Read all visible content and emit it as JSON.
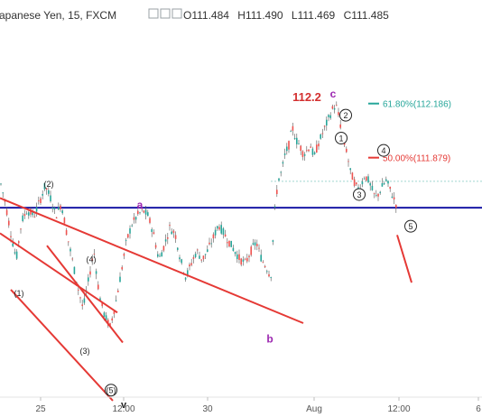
{
  "header": {
    "symbol": "apanese Yen, 15, FXCM",
    "ohlc": [
      {
        "key": "O",
        "value": "111.484"
      },
      {
        "key": "H",
        "value": "111.490"
      },
      {
        "key": "L",
        "value": "111.469"
      },
      {
        "key": "C",
        "value": "111.485"
      }
    ]
  },
  "chart_data": {
    "type": "candlestick",
    "y_range": [
      110.52,
      112.62
    ],
    "x_range": [
      0,
      534
    ],
    "x_ticks": [
      {
        "label": "25",
        "x": 45
      },
      {
        "label": "12:00",
        "x": 137
      },
      {
        "label": "30",
        "x": 230
      },
      {
        "label": "Aug",
        "x": 348
      },
      {
        "label": "12:00",
        "x": 442
      },
      {
        "label": "6",
        "x": 530
      }
    ],
    "price_path": [
      [
        0,
        111.75
      ],
      [
        6,
        111.62
      ],
      [
        12,
        111.45
      ],
      [
        18,
        111.3
      ],
      [
        24,
        111.52
      ],
      [
        30,
        111.58
      ],
      [
        38,
        111.55
      ],
      [
        44,
        111.63
      ],
      [
        50,
        111.72
      ],
      [
        56,
        111.65
      ],
      [
        62,
        111.55
      ],
      [
        68,
        111.62
      ],
      [
        74,
        111.45
      ],
      [
        80,
        111.3
      ],
      [
        86,
        111.15
      ],
      [
        92,
        111.02
      ],
      [
        98,
        111.18
      ],
      [
        104,
        111.35
      ],
      [
        110,
        111.1
      ],
      [
        116,
        110.98
      ],
      [
        122,
        110.92
      ],
      [
        128,
        111.05
      ],
      [
        134,
        111.22
      ],
      [
        140,
        111.4
      ],
      [
        146,
        111.5
      ],
      [
        152,
        111.55
      ],
      [
        158,
        111.58
      ],
      [
        164,
        111.55
      ],
      [
        170,
        111.45
      ],
      [
        176,
        111.3
      ],
      [
        182,
        111.38
      ],
      [
        188,
        111.48
      ],
      [
        194,
        111.45
      ],
      [
        200,
        111.3
      ],
      [
        206,
        111.2
      ],
      [
        212,
        111.28
      ],
      [
        218,
        111.35
      ],
      [
        224,
        111.3
      ],
      [
        230,
        111.35
      ],
      [
        236,
        111.42
      ],
      [
        242,
        111.5
      ],
      [
        248,
        111.45
      ],
      [
        254,
        111.4
      ],
      [
        260,
        111.35
      ],
      [
        266,
        111.3
      ],
      [
        272,
        111.28
      ],
      [
        278,
        111.35
      ],
      [
        284,
        111.4
      ],
      [
        290,
        111.3
      ],
      [
        296,
        111.25
      ],
      [
        300,
        111.2
      ],
      [
        304,
        111.55
      ],
      [
        308,
        111.75
      ],
      [
        312,
        111.8
      ],
      [
        316,
        111.9
      ],
      [
        320,
        111.95
      ],
      [
        324,
        112.05
      ],
      [
        328,
        111.98
      ],
      [
        332,
        111.95
      ],
      [
        336,
        111.9
      ],
      [
        340,
        111.92
      ],
      [
        344,
        111.95
      ],
      [
        348,
        111.88
      ],
      [
        352,
        111.95
      ],
      [
        356,
        112.0
      ],
      [
        360,
        112.05
      ],
      [
        364,
        112.1
      ],
      [
        368,
        112.15
      ],
      [
        372,
        112.18
      ],
      [
        376,
        112.1
      ],
      [
        380,
        111.98
      ],
      [
        384,
        111.92
      ],
      [
        388,
        111.8
      ],
      [
        392,
        111.75
      ],
      [
        396,
        111.7
      ],
      [
        400,
        111.72
      ],
      [
        404,
        111.78
      ],
      [
        408,
        111.75
      ],
      [
        412,
        111.7
      ],
      [
        416,
        111.65
      ],
      [
        420,
        111.68
      ],
      [
        424,
        111.72
      ],
      [
        428,
        111.75
      ],
      [
        432,
        111.7
      ],
      [
        436,
        111.65
      ],
      [
        440,
        111.6
      ]
    ],
    "levels": [
      {
        "price": 111.595,
        "color": "#1a1aa6",
        "x1": 0,
        "x2": 534
      },
      {
        "price": 111.745,
        "color": "#a0d8d0",
        "dashed": true,
        "x1": 300,
        "x2": 534
      }
    ],
    "fib_levels": [
      {
        "label": "61.80%(112.186)",
        "price": 112.186,
        "color": "#26a69a"
      },
      {
        "label": "50.00%(111.879)",
        "price": 111.879,
        "color": "#e53935"
      }
    ],
    "trendlines": [
      {
        "color": "#e53935",
        "points": [
          [
            0,
            111.65
          ],
          [
            336,
            110.94
          ]
        ]
      },
      {
        "color": "#e53935",
        "points": [
          [
            0,
            111.45
          ],
          [
            130,
            111.0
          ]
        ]
      },
      {
        "color": "#e53935",
        "points": [
          [
            12,
            111.13
          ],
          [
            125,
            110.5
          ]
        ]
      },
      {
        "color": "#e53935",
        "points": [
          [
            52,
            111.38
          ],
          [
            136,
            110.83
          ]
        ]
      },
      {
        "color": "#e53935",
        "points": [
          [
            440,
            111.44
          ],
          [
            456,
            111.17
          ]
        ]
      }
    ],
    "wave_labels": [
      {
        "text": "(2)",
        "x": 54,
        "price": 111.73,
        "style": "paren"
      },
      {
        "text": "(1)",
        "x": 21,
        "price": 111.11,
        "style": "paren"
      },
      {
        "text": "(4)",
        "x": 101,
        "price": 111.3,
        "style": "paren"
      },
      {
        "text": "(3)",
        "x": 94,
        "price": 110.78,
        "style": "paren"
      },
      {
        "text": "(5)",
        "x": 123,
        "price": 110.56,
        "style": "circle"
      },
      {
        "text": "v",
        "x": 137,
        "price": 110.48,
        "style": "bold"
      },
      {
        "text": "a",
        "x": 155,
        "price": 111.61,
        "style": "purple"
      },
      {
        "text": "b",
        "x": 299,
        "price": 110.85,
        "style": "purple"
      },
      {
        "text": "c",
        "x": 369,
        "price": 112.24,
        "style": "purple"
      },
      {
        "text": "112.2",
        "x": 340,
        "price": 112.22,
        "style": "red"
      },
      {
        "text": "2",
        "x": 383,
        "price": 112.12,
        "style": "circle"
      },
      {
        "text": "1",
        "x": 378,
        "price": 111.99,
        "style": "circle"
      },
      {
        "text": "4",
        "x": 425,
        "price": 111.92,
        "style": "circle"
      },
      {
        "text": "3",
        "x": 398,
        "price": 111.67,
        "style": "circle"
      },
      {
        "text": "5",
        "x": 455,
        "price": 111.49,
        "style": "circle"
      }
    ]
  }
}
